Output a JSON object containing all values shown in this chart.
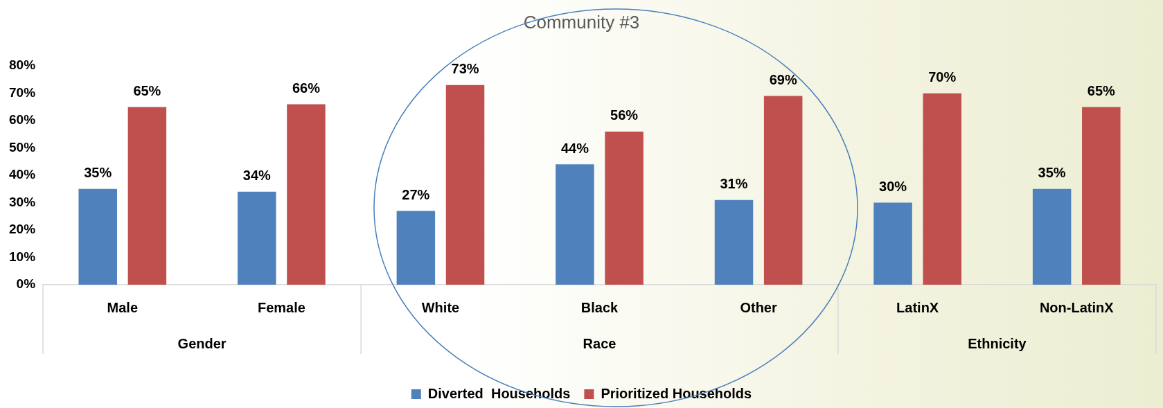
{
  "chart_data": {
    "type": "bar",
    "title": "Community #3",
    "categories": [
      "Male",
      "Female",
      "White",
      "Black",
      "Other",
      "LatinX",
      "Non-LatinX"
    ],
    "series": [
      {
        "name": "Diverted  Households",
        "color": "#4f81bd",
        "values": [
          35,
          34,
          27,
          44,
          31,
          30,
          35
        ]
      },
      {
        "name": "Prioritized Households",
        "color": "#c0504d",
        "values": [
          65,
          66,
          73,
          56,
          69,
          70,
          65
        ]
      }
    ],
    "ylim": [
      0,
      80
    ],
    "yticks": [
      {
        "value": 0,
        "label": "0%"
      },
      {
        "value": 10,
        "label": "10%"
      },
      {
        "value": 20,
        "label": "20%"
      },
      {
        "value": 30,
        "label": "30%"
      },
      {
        "value": 40,
        "label": "40%"
      },
      {
        "value": 50,
        "label": "50%"
      },
      {
        "value": 60,
        "label": "60%"
      },
      {
        "value": 70,
        "label": "70%"
      },
      {
        "value": 80,
        "label": "80%"
      }
    ],
    "annotations": [
      "Gender",
      "Race",
      "Ethnicity"
    ],
    "value_labels": [
      [
        "35%",
        "34%",
        "27%",
        "44%",
        "31%",
        "30%",
        "35%"
      ],
      [
        "65%",
        "66%",
        "73%",
        "56%",
        "69%",
        "70%",
        "65%"
      ]
    ],
    "grid": false,
    "legend": "bottom"
  }
}
